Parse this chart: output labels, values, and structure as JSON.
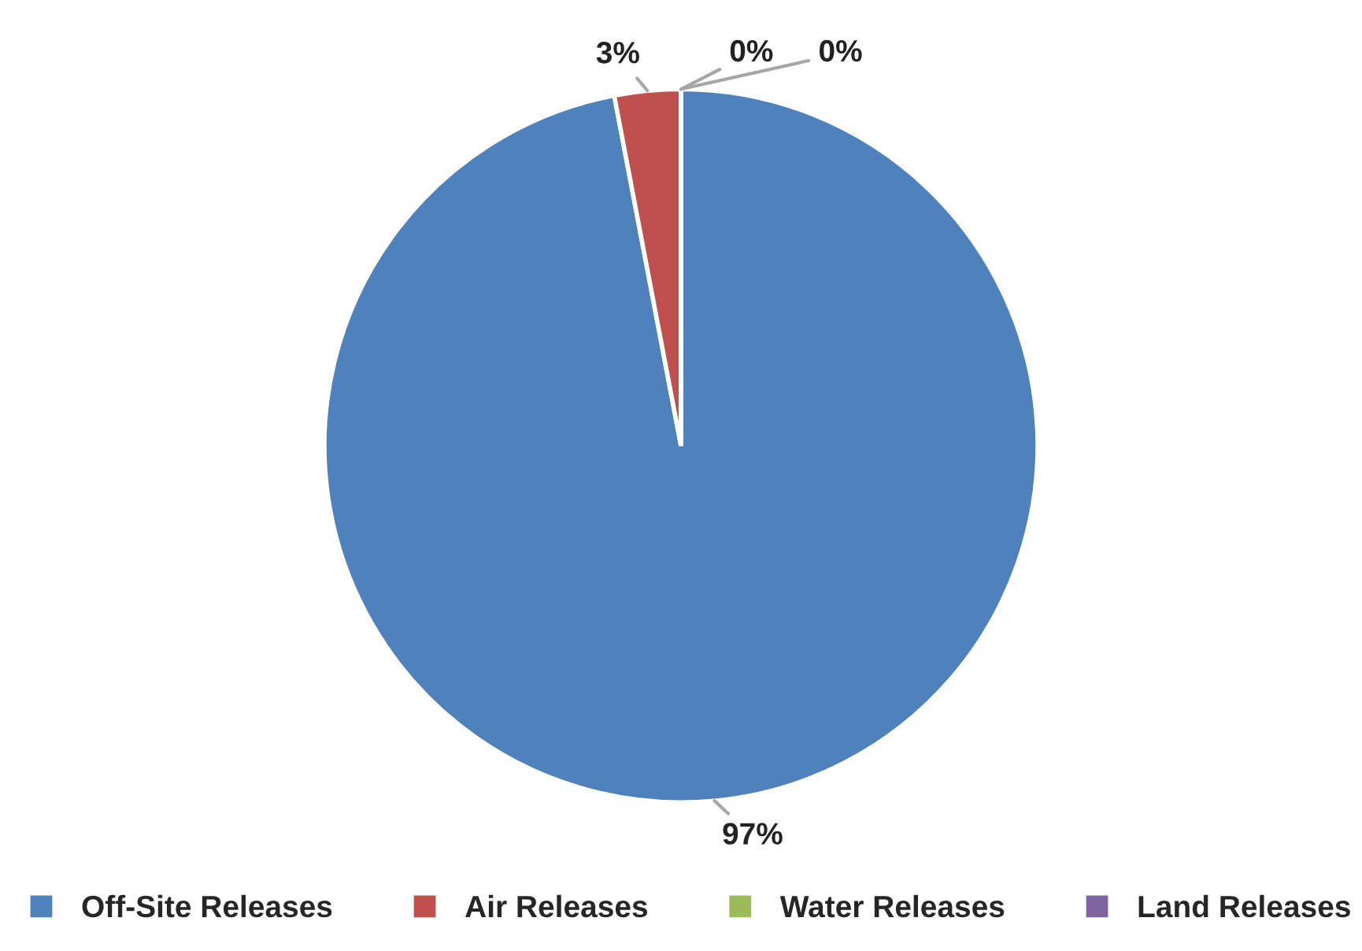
{
  "chart_data": {
    "type": "pie",
    "categories": [
      "Off-Site Releases",
      "Air Releases",
      "Water Releases",
      "Land Releases"
    ],
    "values": [
      97,
      3,
      0,
      0
    ],
    "colors": [
      "#4f81bd",
      "#c0504d",
      "#9bbb59",
      "#8064a2"
    ],
    "value_labels": [
      "97%",
      "3%",
      "0%",
      "0%"
    ],
    "legend": "bottom"
  }
}
